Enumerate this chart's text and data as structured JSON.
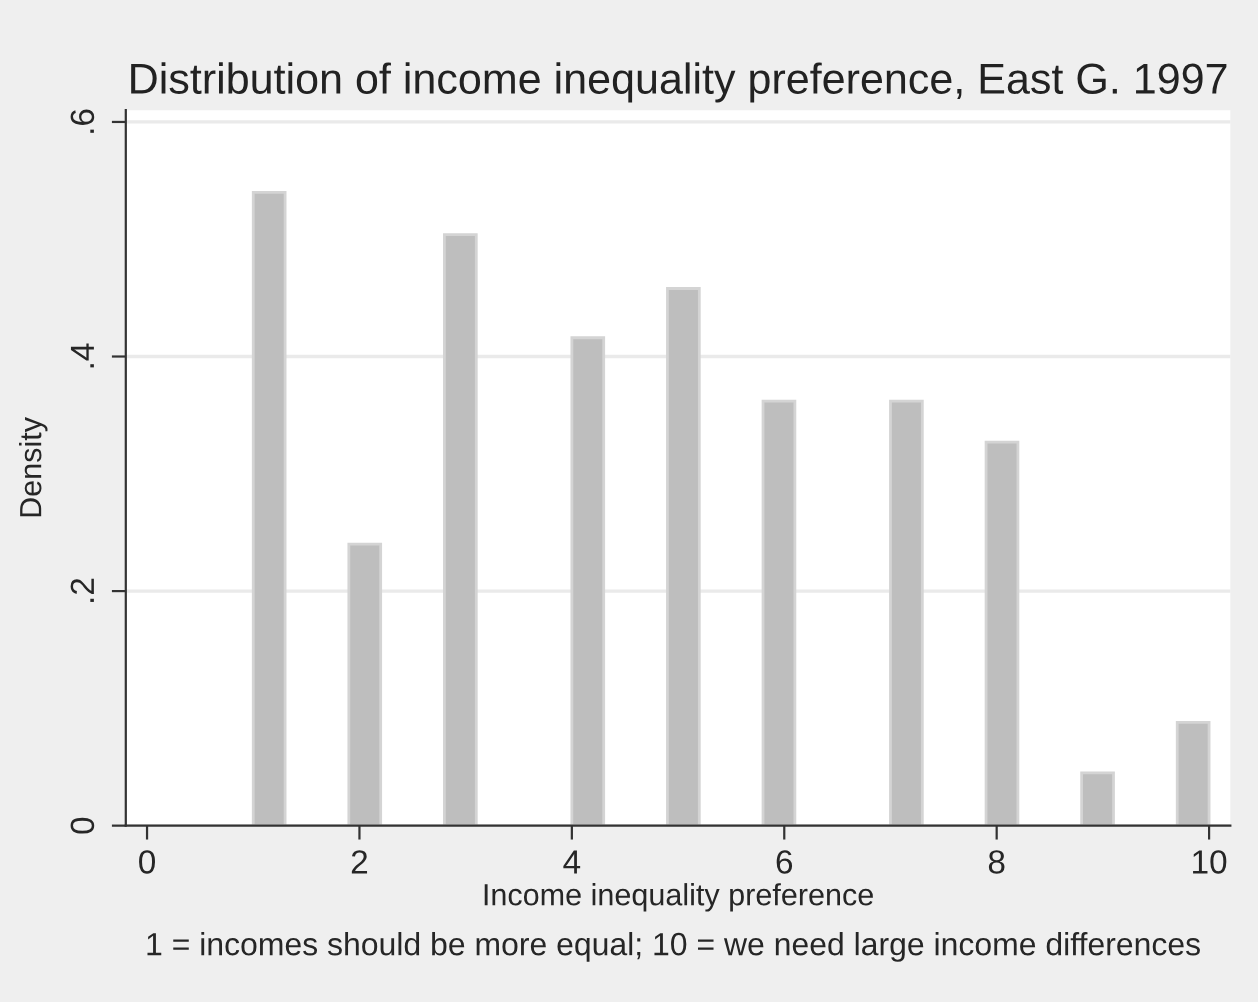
{
  "chart_data": {
    "type": "histogram",
    "title": "Distribution of income inequality preference, East G. 1997",
    "xlabel": "Income inequality preference",
    "ylabel": "Density",
    "annotations": [
      "1 = incomes should be more equal; 10 = we need large income differences"
    ],
    "bins": [
      1.0,
      1.3,
      1.6,
      1.9,
      2.2,
      2.5,
      2.8,
      3.1,
      3.4,
      3.7,
      4.0,
      4.3,
      4.6,
      4.9,
      5.2,
      5.5,
      5.8,
      6.1,
      6.4,
      6.7,
      7.0,
      7.3,
      7.6,
      7.9,
      8.2,
      8.5,
      8.8,
      9.1,
      9.4,
      9.7,
      10.0
    ],
    "values": [
      0.54,
      0,
      0,
      0.24,
      0,
      0,
      0.504,
      0,
      0,
      0,
      0.416,
      0,
      0,
      0.458,
      0,
      0,
      0.362,
      0,
      0,
      0,
      0.362,
      0,
      0,
      0.327,
      0,
      0,
      0.045,
      0,
      0,
      0.088
    ],
    "color": "#bebebe",
    "xlim": [
      -0.2,
      10.2
    ],
    "xticks": [
      0,
      2,
      4,
      6,
      8,
      10
    ],
    "ylim": [
      0,
      0.61
    ],
    "yticks": [
      {
        "value": 0,
        "label": "0"
      },
      {
        "value": 0.2,
        "label": ".2"
      },
      {
        "value": 0.4,
        "label": ".4"
      },
      {
        "value": 0.6,
        "label": ".6"
      }
    ],
    "grid": "y"
  }
}
